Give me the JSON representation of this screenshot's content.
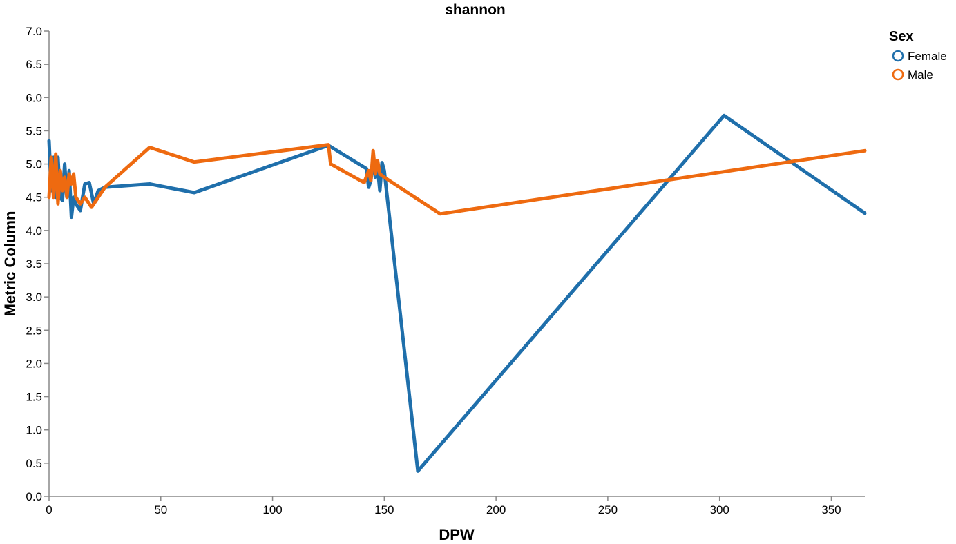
{
  "chart_data": {
    "type": "line",
    "title": "shannon",
    "xlabel": "DPW",
    "ylabel": "Metric Column",
    "xlim": [
      0,
      365
    ],
    "ylim": [
      0,
      7
    ],
    "xticks": [
      0,
      50,
      100,
      150,
      200,
      250,
      300,
      350
    ],
    "yticks": [
      0.0,
      0.5,
      1.0,
      1.5,
      2.0,
      2.5,
      3.0,
      3.5,
      4.0,
      4.5,
      5.0,
      5.5,
      6.0,
      6.5,
      7.0
    ],
    "grid": false,
    "legend": {
      "title": "Sex",
      "position": "top-right"
    },
    "series": [
      {
        "name": "Female",
        "color": "#1f6fab",
        "x": [
          0,
          1,
          2,
          3,
          4,
          5,
          6,
          7,
          8,
          9,
          10,
          11,
          12,
          14,
          16,
          18,
          20,
          22,
          25,
          45,
          65,
          125,
          142,
          143,
          144,
          145,
          146,
          147,
          148,
          149,
          150,
          165,
          302,
          365
        ],
        "y": [
          5.35,
          4.6,
          5.1,
          4.5,
          5.1,
          4.5,
          4.45,
          5.0,
          4.5,
          4.9,
          4.2,
          4.5,
          4.4,
          4.3,
          4.7,
          4.72,
          4.4,
          4.6,
          4.65,
          4.7,
          4.57,
          5.28,
          4.93,
          4.65,
          4.75,
          5.1,
          4.8,
          4.95,
          4.6,
          5.02,
          4.9,
          0.38,
          5.73,
          4.26
        ]
      },
      {
        "name": "Male",
        "color": "#ee6a10",
        "x": [
          0,
          1,
          2,
          3,
          4,
          5,
          6,
          7,
          8,
          9,
          10,
          11,
          12,
          14,
          16,
          19,
          25,
          45,
          65,
          125,
          126,
          141,
          143,
          144,
          145,
          146,
          147,
          148,
          150,
          175,
          365
        ],
        "y": [
          4.5,
          5.1,
          4.5,
          5.15,
          4.4,
          4.9,
          4.6,
          4.8,
          4.5,
          4.85,
          4.7,
          4.85,
          4.5,
          4.4,
          4.5,
          4.35,
          4.65,
          5.25,
          5.03,
          5.29,
          5.0,
          4.72,
          4.9,
          4.75,
          5.2,
          4.85,
          5.05,
          4.85,
          4.8,
          4.25,
          5.2
        ]
      }
    ]
  }
}
